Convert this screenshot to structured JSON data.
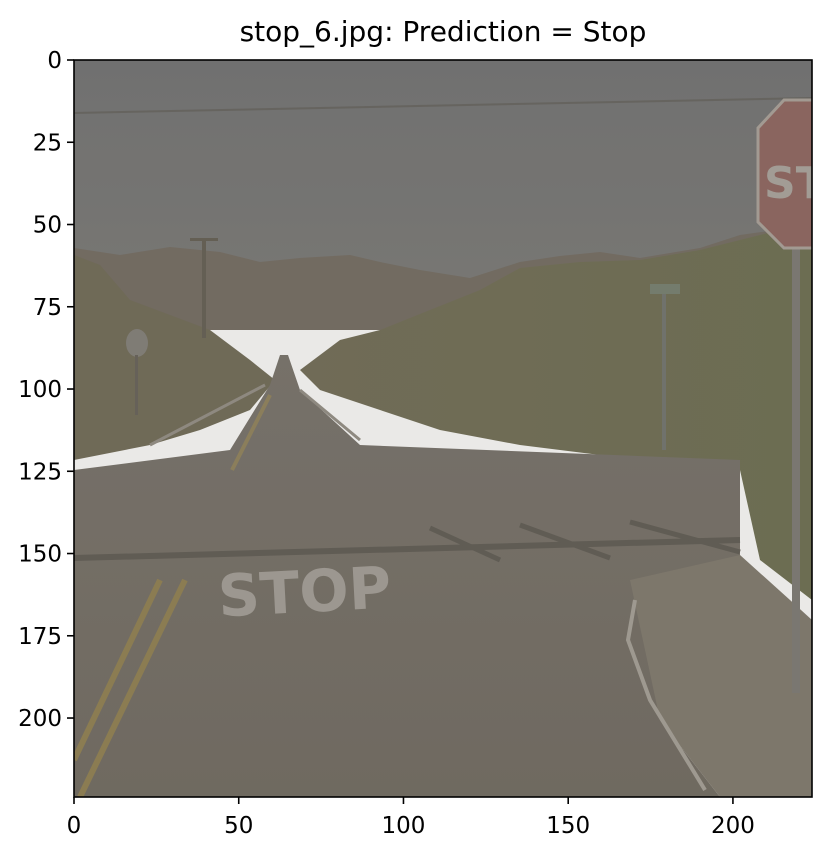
{
  "figure": {
    "title": "stop_6.jpg: Prediction = Stop",
    "x_axis": {
      "range": [
        0,
        224
      ],
      "ticks": [
        0,
        50,
        100,
        150,
        200
      ],
      "tick_labels": [
        "0",
        "50",
        "100",
        "150",
        "200"
      ]
    },
    "y_axis": {
      "range": [
        0,
        224
      ],
      "inverted": true,
      "ticks": [
        0,
        25,
        50,
        75,
        100,
        125,
        150,
        175,
        200
      ],
      "tick_labels": [
        "0",
        "25",
        "50",
        "75",
        "100",
        "125",
        "150",
        "175",
        "200"
      ]
    },
    "image": {
      "road_marking_text": "STOP",
      "sign_text": "STO"
    }
  },
  "colors": {
    "sky": "#6f7071",
    "hills": "#6e665b",
    "vegetation": "#6a6b4e",
    "road": "#6e6860",
    "marking_white": "#a09c95",
    "marking_yellow": "#8b7b4a",
    "sign_red": "#8a5f5a"
  }
}
